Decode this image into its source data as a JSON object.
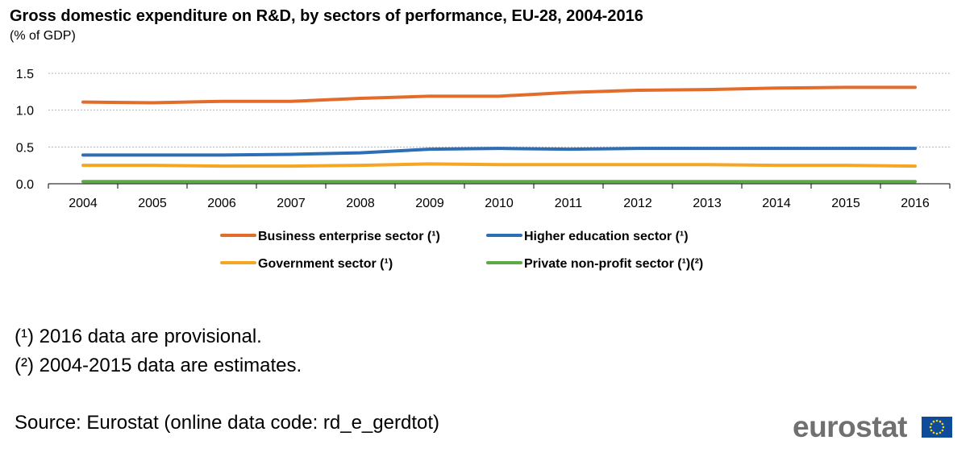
{
  "title": "Gross domestic expenditure on R&D, by sectors of performance, EU-28, 2004-2016",
  "subtitle": "(% of GDP)",
  "footnotes": [
    "(¹) 2016 data are provisional.",
    "(²) 2004-2015 data are estimates."
  ],
  "source": "Source: Eurostat (online data code: rd_e_gerdtot)",
  "logo_text": "eurostat",
  "chart_data": {
    "type": "line",
    "title": "Gross domestic expenditure on R&D, by sectors of performance, EU-28, 2004-2016",
    "subtitle": "(% of GDP)",
    "xlabel": "",
    "ylabel": "",
    "x": [
      "2004",
      "2005",
      "2006",
      "2007",
      "2008",
      "2009",
      "2010",
      "2011",
      "2012",
      "2013",
      "2014",
      "2015",
      "2016"
    ],
    "ylim": [
      0,
      1.5
    ],
    "yticks": [
      "0.0",
      "0.5",
      "1.0",
      "1.5"
    ],
    "grid": true,
    "legend_position": "bottom",
    "series": [
      {
        "name": "Business enterprise sector (¹)",
        "color": "#E46C2A",
        "values": [
          1.11,
          1.1,
          1.12,
          1.12,
          1.16,
          1.19,
          1.19,
          1.24,
          1.27,
          1.28,
          1.3,
          1.31,
          1.31
        ]
      },
      {
        "name": "Higher education sector (¹)",
        "color": "#2E6EB5",
        "values": [
          0.39,
          0.39,
          0.39,
          0.4,
          0.42,
          0.47,
          0.48,
          0.47,
          0.48,
          0.48,
          0.48,
          0.48,
          0.48
        ]
      },
      {
        "name": "Government sector (¹)",
        "color": "#F5A623",
        "values": [
          0.25,
          0.25,
          0.24,
          0.24,
          0.25,
          0.27,
          0.26,
          0.26,
          0.26,
          0.26,
          0.25,
          0.25,
          0.24
        ]
      },
      {
        "name": "Private non-profit sector (¹)(²)",
        "color": "#5BAA46",
        "values": [
          0.03,
          0.03,
          0.03,
          0.03,
          0.03,
          0.03,
          0.03,
          0.03,
          0.03,
          0.03,
          0.03,
          0.03,
          0.03
        ]
      }
    ]
  }
}
